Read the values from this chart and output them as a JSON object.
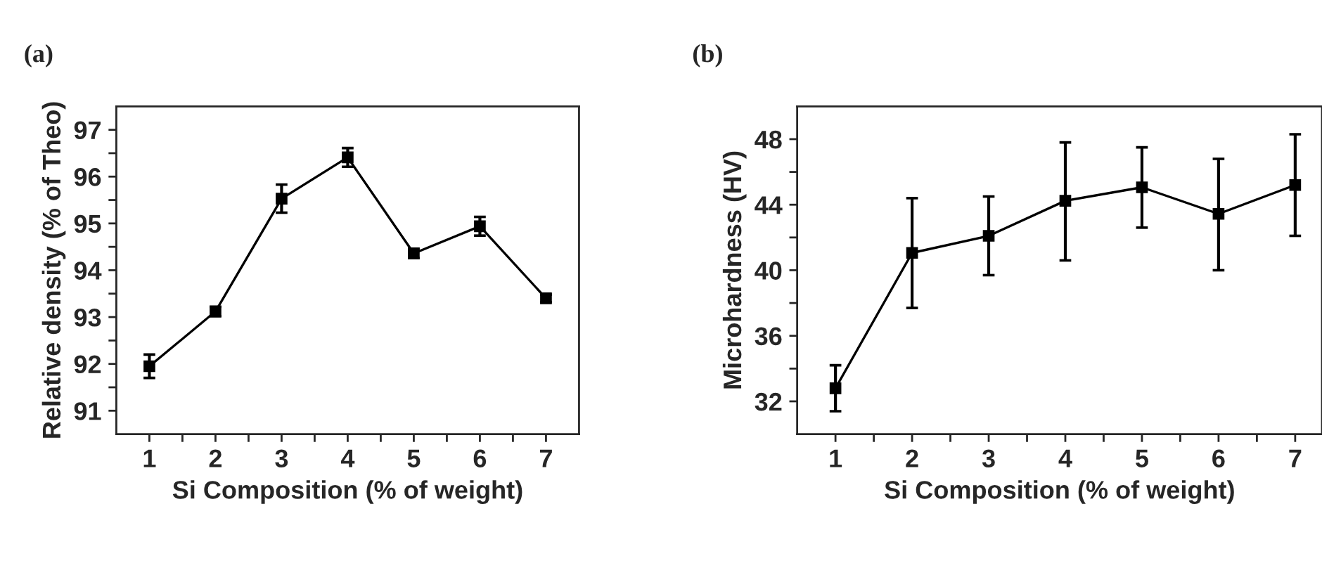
{
  "chart_data": [
    {
      "type": "line",
      "title": "(a)",
      "xlabel": "Si Composition (% of weight)",
      "ylabel": "Relative density (% of Theo)",
      "x": [
        1,
        2,
        3,
        4,
        5,
        6,
        7
      ],
      "series": [
        {
          "color": "#000000",
          "values": [
            91.95,
            93.12,
            95.53,
            96.41,
            94.36,
            94.94,
            93.4
          ],
          "errors": [
            0.25,
            0.1,
            0.3,
            0.2,
            0.1,
            0.2,
            0.08
          ]
        }
      ],
      "xlim": [
        0.5,
        7.5
      ],
      "ylim": [
        90.5,
        97.5
      ],
      "xticks": [
        1,
        {
          "value": 1.5,
          "label": null
        },
        2,
        {
          "value": 2.5,
          "label": null
        },
        3,
        {
          "value": 3.5,
          "label": null
        },
        4,
        {
          "value": 4.5,
          "label": null
        },
        5,
        {
          "value": 5.5,
          "label": null
        },
        6,
        {
          "value": 6.5,
          "label": null
        },
        7
      ],
      "yticks": [
        91,
        {
          "value": 91.5,
          "label": null
        },
        92,
        {
          "value": 92.5,
          "label": null
        },
        93,
        {
          "value": 93.5,
          "label": null
        },
        94,
        {
          "value": 94.5,
          "label": null
        },
        95,
        {
          "value": 95.5,
          "label": null
        },
        96,
        {
          "value": 96.5,
          "label": null
        },
        97
      ],
      "marker": "square",
      "line_style": "solid",
      "grid": false,
      "legend": false
    },
    {
      "type": "line",
      "title": "(b)",
      "xlabel": "Si Composition (% of weight)",
      "ylabel": "Microhardness (HV)",
      "x": [
        1,
        2,
        3,
        4,
        5,
        6,
        7
      ],
      "series": [
        {
          "color": "#000000",
          "values": [
            32.8,
            41.06,
            42.1,
            44.24,
            45.06,
            43.44,
            45.2
          ],
          "errors": [
            [
              31.4,
              34.2
            ],
            [
              37.7,
              44.4
            ],
            [
              39.7,
              44.5
            ],
            [
              40.6,
              47.8
            ],
            [
              42.6,
              47.5
            ],
            [
              40.0,
              46.8
            ],
            [
              42.1,
              48.3
            ]
          ]
        }
      ],
      "xlim": [
        0.5,
        7.35
      ],
      "ylim": [
        30,
        50
      ],
      "xticks": [
        1,
        {
          "value": 1.5,
          "label": null
        },
        2,
        {
          "value": 2.5,
          "label": null
        },
        3,
        {
          "value": 3.5,
          "label": null
        },
        4,
        {
          "value": 4.5,
          "label": null
        },
        5,
        {
          "value": 5.5,
          "label": null
        },
        6,
        {
          "value": 6.5,
          "label": null
        },
        7
      ],
      "yticks": [
        32,
        {
          "value": 34,
          "label": null
        },
        36,
        {
          "value": 38,
          "label": null
        },
        40,
        {
          "value": 42,
          "label": null
        },
        44,
        {
          "value": 46,
          "label": null
        },
        48
      ],
      "marker": "square",
      "line_style": "solid",
      "grid": false,
      "legend": false
    }
  ]
}
